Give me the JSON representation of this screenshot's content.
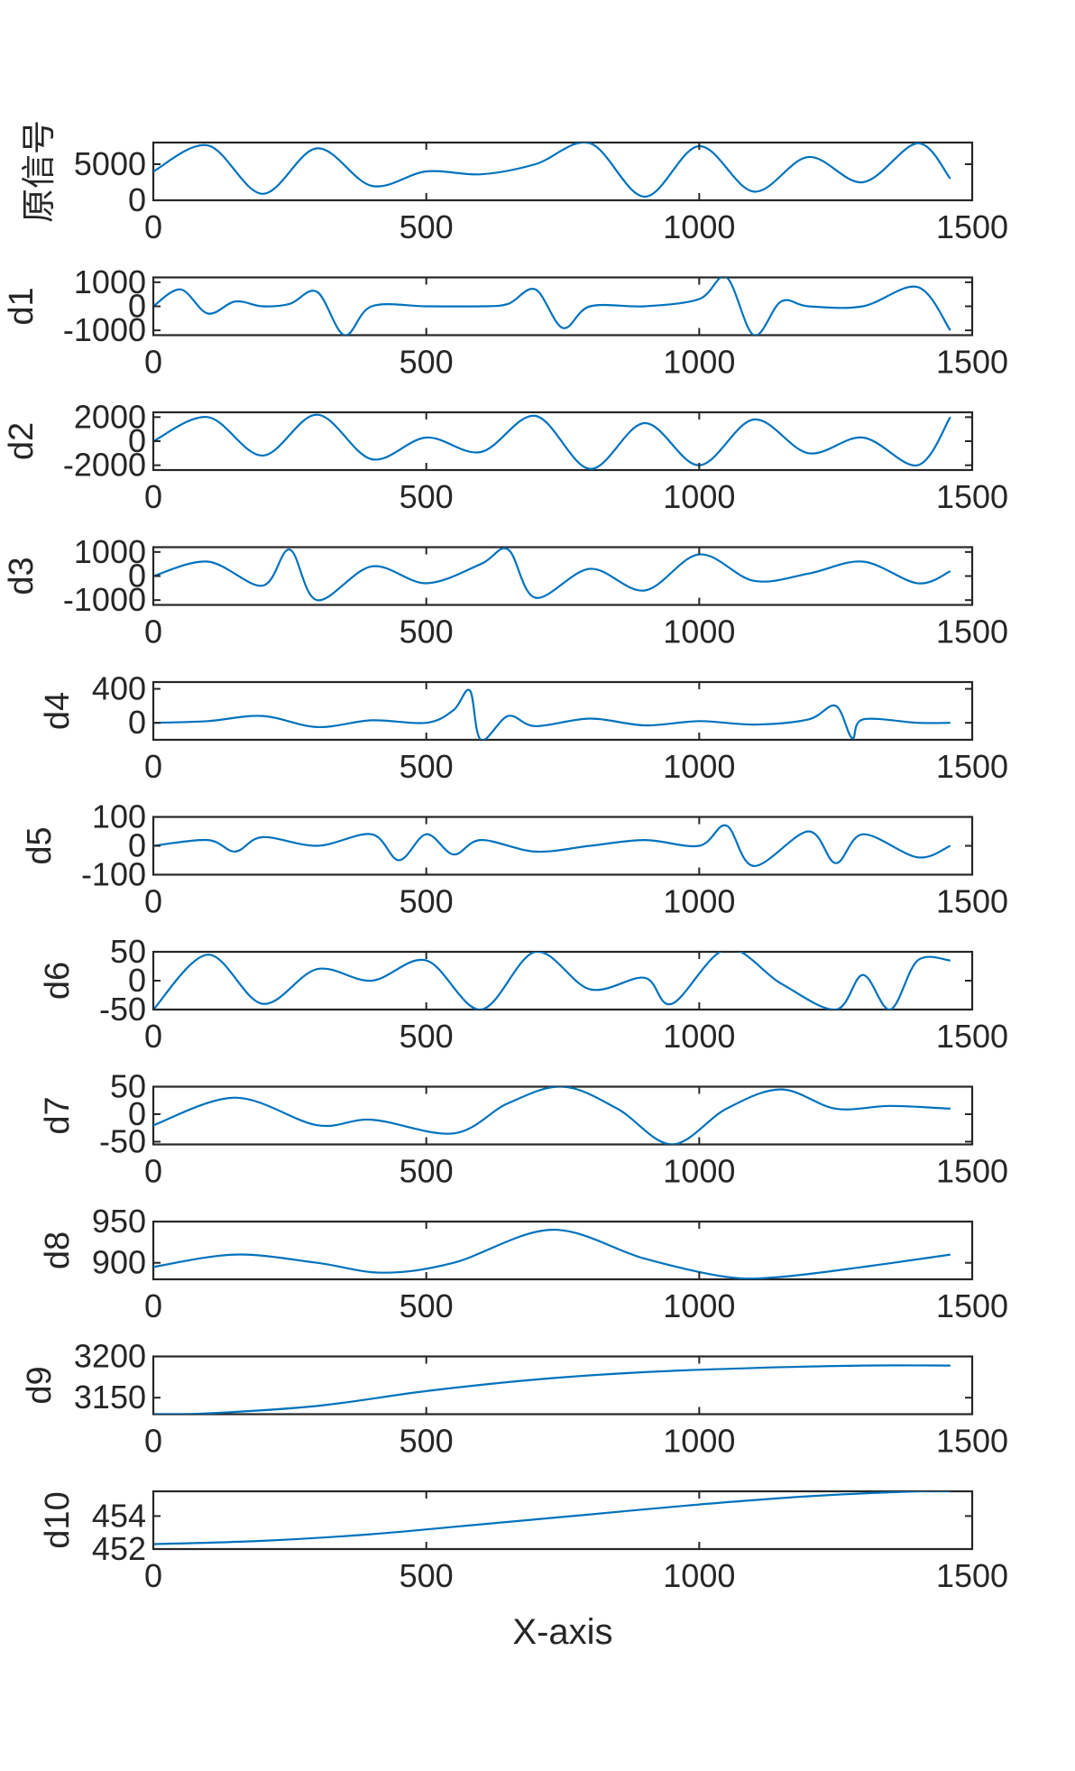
{
  "chart_data": {
    "type": "line",
    "xlabel": "X-axis",
    "xlim": [
      0,
      1500
    ],
    "xticks": [
      0,
      500,
      1000,
      1500
    ],
    "grid": false,
    "color": "#0072BD",
    "panels": [
      {
        "ylabel": "原信号",
        "ylim": [
          0,
          8000
        ],
        "yticks": [
          0,
          5000
        ],
        "x": [
          0,
          100,
          200,
          300,
          400,
          500,
          600,
          700,
          800,
          900,
          1000,
          1100,
          1200,
          1300,
          1400,
          1460
        ],
        "y": [
          4000,
          7600,
          900,
          7200,
          2000,
          4000,
          3600,
          5000,
          7900,
          500,
          7500,
          1200,
          6000,
          2500,
          7900,
          3000
        ]
      },
      {
        "ylabel": "d1",
        "ylim": [
          -1200,
          1200
        ],
        "yticks": [
          -1000,
          0,
          1000
        ],
        "x": [
          0,
          50,
          100,
          150,
          200,
          250,
          300,
          350,
          400,
          500,
          600,
          650,
          700,
          750,
          800,
          900,
          1000,
          1050,
          1100,
          1150,
          1200,
          1300,
          1400,
          1460
        ],
        "y": [
          0,
          700,
          -300,
          200,
          0,
          100,
          600,
          -1200,
          0,
          0,
          0,
          100,
          700,
          -900,
          0,
          0,
          300,
          1200,
          -1200,
          200,
          0,
          0,
          800,
          -1000
        ]
      },
      {
        "ylabel": "d2",
        "ylim": [
          -2400,
          2400
        ],
        "yticks": [
          -2000,
          0,
          2000
        ],
        "x": [
          0,
          100,
          200,
          300,
          400,
          500,
          600,
          700,
          800,
          900,
          1000,
          1100,
          1200,
          1300,
          1400,
          1460
        ],
        "y": [
          0,
          2000,
          -1200,
          2200,
          -1500,
          300,
          -900,
          2100,
          -2300,
          1500,
          -2000,
          1800,
          -1000,
          300,
          -2000,
          2000
        ]
      },
      {
        "ylabel": "d3",
        "ylim": [
          -1200,
          1200
        ],
        "yticks": [
          -1000,
          0,
          1000
        ],
        "x": [
          0,
          100,
          200,
          250,
          300,
          400,
          500,
          600,
          650,
          700,
          800,
          900,
          1000,
          1100,
          1200,
          1300,
          1400,
          1460
        ],
        "y": [
          0,
          600,
          -400,
          1100,
          -1000,
          400,
          -300,
          500,
          1100,
          -900,
          300,
          -600,
          900,
          -200,
          100,
          600,
          -300,
          200
        ]
      },
      {
        "ylabel": "d4",
        "ylim": [
          -200,
          480
        ],
        "yticks": [
          0,
          400
        ],
        "x": [
          0,
          100,
          200,
          300,
          400,
          500,
          550,
          580,
          600,
          650,
          700,
          800,
          900,
          1000,
          1100,
          1200,
          1250,
          1280,
          1300,
          1400,
          1460
        ],
        "y": [
          0,
          20,
          80,
          -50,
          30,
          0,
          150,
          380,
          -200,
          80,
          -40,
          50,
          -30,
          20,
          -20,
          40,
          200,
          -180,
          40,
          0,
          0
        ]
      },
      {
        "ylabel": "d5",
        "ylim": [
          -100,
          100
        ],
        "yticks": [
          -100,
          0,
          100
        ],
        "x": [
          0,
          100,
          150,
          200,
          300,
          400,
          450,
          500,
          550,
          600,
          700,
          800,
          900,
          1000,
          1050,
          1100,
          1200,
          1250,
          1300,
          1400,
          1460
        ],
        "y": [
          0,
          20,
          -20,
          30,
          0,
          40,
          -50,
          40,
          -30,
          20,
          -20,
          0,
          20,
          0,
          70,
          -70,
          50,
          -60,
          40,
          -40,
          0
        ]
      },
      {
        "ylabel": "d6",
        "ylim": [
          -50,
          50
        ],
        "yticks": [
          -50,
          0,
          50
        ],
        "x": [
          0,
          100,
          200,
          300,
          400,
          500,
          600,
          700,
          800,
          900,
          950,
          1050,
          1150,
          1250,
          1300,
          1350,
          1400,
          1460
        ],
        "y": [
          -50,
          45,
          -40,
          20,
          0,
          35,
          -50,
          50,
          -15,
          5,
          -40,
          55,
          -5,
          -50,
          10,
          -50,
          35,
          35
        ]
      },
      {
        "ylabel": "d7",
        "ylim": [
          -55,
          50
        ],
        "yticks": [
          -50,
          0,
          50
        ],
        "x": [
          0,
          150,
          300,
          400,
          550,
          650,
          750,
          850,
          950,
          1050,
          1150,
          1250,
          1350,
          1460
        ],
        "y": [
          -20,
          30,
          -20,
          -10,
          -35,
          20,
          50,
          10,
          -55,
          10,
          45,
          10,
          15,
          10
        ]
      },
      {
        "ylabel": "d8",
        "ylim": [
          880,
          950
        ],
        "yticks": [
          900,
          950
        ],
        "x": [
          0,
          150,
          300,
          420,
          550,
          730,
          900,
          1050,
          1150,
          1300,
          1460
        ],
        "y": [
          895,
          910,
          900,
          888,
          900,
          940,
          905,
          883,
          883,
          895,
          910
        ]
      },
      {
        "ylabel": "d9",
        "ylim": [
          3130,
          3200
        ],
        "yticks": [
          3150,
          3200
        ],
        "x": [
          0,
          100,
          300,
          500,
          700,
          900,
          1100,
          1300,
          1460
        ],
        "y": [
          3130,
          3131,
          3140,
          3158,
          3172,
          3181,
          3186,
          3189,
          3189
        ]
      },
      {
        "ylabel": "d10",
        "ylim": [
          452,
          455.5
        ],
        "yticks": [
          452,
          454
        ],
        "x": [
          0,
          200,
          400,
          600,
          800,
          1000,
          1200,
          1400,
          1460
        ],
        "y": [
          452.3,
          452.5,
          452.9,
          453.5,
          454.1,
          454.7,
          455.2,
          455.5,
          455.5
        ]
      }
    ]
  }
}
